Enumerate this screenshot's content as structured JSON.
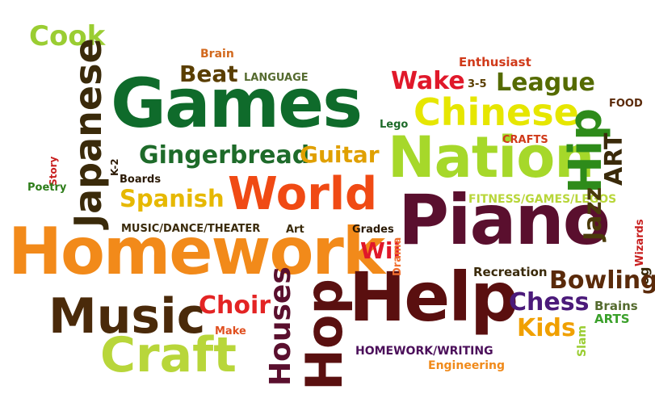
{
  "words": {
    "cook": {
      "text": "Cook",
      "color": "#9acd32"
    },
    "brain": {
      "text": "Brain",
      "color": "#d2691e"
    },
    "beat": {
      "text": "Beat",
      "color": "#5a3e00"
    },
    "language": {
      "text": "LANGUAGE",
      "color": "#556b2f"
    },
    "games": {
      "text": "Games",
      "color": "#0f6b2b"
    },
    "japanese": {
      "text": "Japanese",
      "color": "#3a2a0a"
    },
    "k2": {
      "text": "K-2",
      "color": "#2b1a05"
    },
    "story": {
      "text": "Story",
      "color": "#c81e1e"
    },
    "poetry": {
      "text": "Poetry",
      "color": "#2e7d1a"
    },
    "boards": {
      "text": "Boards",
      "color": "#2b1a05"
    },
    "gingerbread": {
      "text": "Gingerbread",
      "color": "#1e6b2a"
    },
    "guitar": {
      "text": "Guitar",
      "color": "#e0a000"
    },
    "spanish": {
      "text": "Spanish",
      "color": "#e6b800"
    },
    "world": {
      "text": "World",
      "color": "#f04a14"
    },
    "musicdance": {
      "text": "MUSIC/DANCE/THEATER",
      "color": "#3a2a0a"
    },
    "art_small": {
      "text": "Art",
      "color": "#3a2a0a"
    },
    "homework": {
      "text": "Homework",
      "color": "#f28a1a"
    },
    "music": {
      "text": "Music",
      "color": "#4a2a0a"
    },
    "craft": {
      "text": "Craft",
      "color": "#b8d63a"
    },
    "choir": {
      "text": "Choir",
      "color": "#e32424"
    },
    "make": {
      "text": "Make",
      "color": "#e05020"
    },
    "houses": {
      "text": "Houses",
      "color": "#5a0f2e"
    },
    "hop": {
      "text": "Hop",
      "color": "#5a1010"
    },
    "help": {
      "text": "Help",
      "color": "#5a0f0f"
    },
    "homeworkwriting": {
      "text": "HOMEWORK/WRITING",
      "color": "#4b0f5a"
    },
    "engineering": {
      "text": "Engineering",
      "color": "#f08a1a"
    },
    "wii": {
      "text": "Wii",
      "color": "#e0182a"
    },
    "grades": {
      "text": "Grades",
      "color": "#2b1a05"
    },
    "drama": {
      "text": "Drama",
      "color": "#f07030"
    },
    "piano": {
      "text": "Piano",
      "color": "#5a0f2e"
    },
    "enthusiast": {
      "text": "Enthusiast",
      "color": "#d03a1a"
    },
    "wake": {
      "text": "Wake",
      "color": "#e0182a"
    },
    "three_five": {
      "text": "3-5",
      "color": "#5a3e00"
    },
    "league": {
      "text": "League",
      "color": "#556b00"
    },
    "lego": {
      "text": "Lego",
      "color": "#1e6b2a"
    },
    "chinese": {
      "text": "Chinese",
      "color": "#e6e600"
    },
    "nation": {
      "text": "Nation",
      "color": "#a6d82a"
    },
    "crafts": {
      "text": "CRAFTS",
      "color": "#d03a1a"
    },
    "hip": {
      "text": "Hip",
      "color": "#2e8b1a"
    },
    "food": {
      "text": "FOOD",
      "color": "#5a2a0a"
    },
    "art": {
      "text": "ART",
      "color": "#3a2a0a"
    },
    "fitness": {
      "text": "FITNESS/GAMES/LEGOS",
      "color": "#b8d63a"
    },
    "jazz": {
      "text": "Jazz",
      "color": "#4a3a0a"
    },
    "wizards": {
      "text": "Wizards",
      "color": "#c81e1e"
    },
    "og": {
      "text": "og",
      "color": "#3a2a0a"
    },
    "recreation": {
      "text": "Recreation",
      "color": "#3a2a0a"
    },
    "bowling": {
      "text": "Bowling",
      "color": "#5a2a0a"
    },
    "chess": {
      "text": "Chess",
      "color": "#4b1a7a"
    },
    "brains": {
      "text": "Brains",
      "color": "#556b2f"
    },
    "arts": {
      "text": "ARTS",
      "color": "#3aa02a"
    },
    "kids": {
      "text": "Kids",
      "color": "#f0a000"
    },
    "slam": {
      "text": "Slam",
      "color": "#9acd32"
    }
  }
}
